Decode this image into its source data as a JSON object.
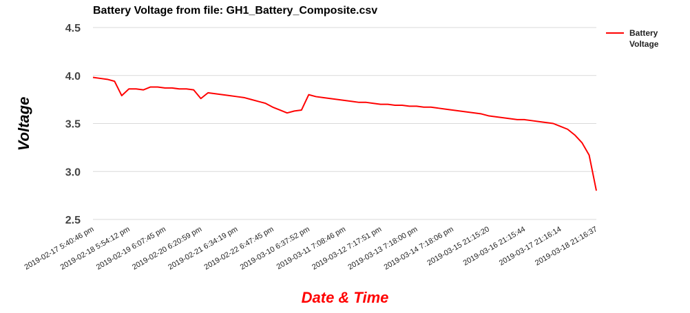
{
  "chart_data": {
    "type": "line",
    "title": "Battery Voltage from file: GH1_Battery_Composite.csv",
    "x_label": "Date & Time",
    "y_label": "Voltage",
    "categories": [
      "2019-02-17 5:40:46 pm",
      null,
      null,
      null,
      null,
      "2019-02-18 5:54:12 pm",
      null,
      null,
      null,
      null,
      "2019-02-19 6:07:45 pm",
      null,
      null,
      null,
      null,
      "2019-02-20 6:20:59 pm",
      null,
      null,
      null,
      null,
      "2019-02-21 6:34:19 pm",
      null,
      null,
      null,
      null,
      "2019-02-22 6:47:45 pm",
      null,
      null,
      null,
      null,
      "2019-03-10 6:37:52 pm",
      null,
      null,
      null,
      null,
      "2019-03-11 7:08:46 pm",
      null,
      null,
      null,
      null,
      "2019-03-12 7:17:51 pm",
      null,
      null,
      null,
      null,
      "2019-03-13 7:18:00 pm",
      null,
      null,
      null,
      null,
      "2019-03-14 7:18:06 pm",
      null,
      null,
      null,
      null,
      "2019-03-15 21:15:20",
      null,
      null,
      null,
      null,
      "2019-03-16 21:15:44",
      null,
      null,
      null,
      null,
      "2019-03-17 21:16:14",
      null,
      null,
      null,
      null,
      "2019-03-18 21:16:37"
    ],
    "series": [
      {
        "name": "Battery Voltage",
        "color": "#ff0000",
        "values": [
          3.98,
          3.97,
          3.96,
          3.94,
          3.79,
          3.86,
          3.86,
          3.85,
          3.88,
          3.88,
          3.87,
          3.87,
          3.86,
          3.86,
          3.85,
          3.76,
          3.82,
          3.81,
          3.8,
          3.79,
          3.78,
          3.77,
          3.75,
          3.73,
          3.71,
          3.67,
          3.64,
          3.61,
          3.63,
          3.64,
          3.8,
          3.78,
          3.77,
          3.76,
          3.75,
          3.74,
          3.73,
          3.72,
          3.72,
          3.71,
          3.7,
          3.7,
          3.69,
          3.69,
          3.68,
          3.68,
          3.67,
          3.67,
          3.66,
          3.65,
          3.64,
          3.63,
          3.62,
          3.61,
          3.6,
          3.58,
          3.57,
          3.56,
          3.55,
          3.54,
          3.54,
          3.53,
          3.52,
          3.51,
          3.5,
          3.47,
          3.44,
          3.38,
          3.3,
          3.17,
          2.8
        ]
      }
    ],
    "ylim": [
      2.5,
      4.5
    ],
    "yticks": [
      2.5,
      {
        "value": 3,
        "label": "3.0"
      },
      3.5,
      {
        "value": 4,
        "label": "4.0"
      },
      4.5
    ],
    "grid": true,
    "legend": "right"
  }
}
